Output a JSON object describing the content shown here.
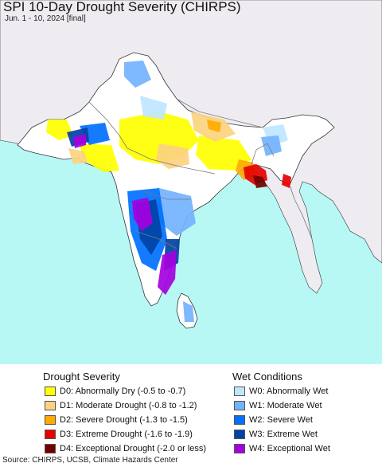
{
  "header": {
    "title": "SPI 10-Day Drought Severity (CHIRPS)",
    "subtitle": "Jun. 1 - 10, 2024 [final]"
  },
  "colors": {
    "sea": "#b7f8f5",
    "land_outside": "#eeecf1",
    "land_normal": "#ffffff",
    "border_line": "#7a7a7a",
    "coast_line": "#333333"
  },
  "legend": {
    "drought": {
      "heading": "Drought Severity",
      "items": [
        {
          "code": "D0",
          "label": "D0: Abnormally Dry (-0.5 to -0.7)",
          "color": "#ffff00"
        },
        {
          "code": "D1",
          "label": "D1: Moderate Drought (-0.8 to -1.2)",
          "color": "#fcd37f"
        },
        {
          "code": "D2",
          "label": "D2: Severe Drought (-1.3 to -1.5)",
          "color": "#ffaa00"
        },
        {
          "code": "D3",
          "label": "D3: Extreme Drought (-1.6 to -1.9)",
          "color": "#e60000"
        },
        {
          "code": "D4",
          "label": "D4: Exceptional Drought (-2.0 or less)",
          "color": "#730000"
        }
      ]
    },
    "wet": {
      "heading": "Wet Conditions",
      "items": [
        {
          "code": "W0",
          "label": "W0: Abnormally Wet",
          "color": "#bfe6ff"
        },
        {
          "code": "W1",
          "label": "W1: Moderate Wet",
          "color": "#73b2ff"
        },
        {
          "code": "W2",
          "label": "W2: Severe Wet",
          "color": "#0070ff"
        },
        {
          "code": "W3",
          "label": "W3: Extreme Wet",
          "color": "#0042a5"
        },
        {
          "code": "W4",
          "label": "W4: Exceptional Wet",
          "color": "#a400e0"
        }
      ]
    }
  },
  "footer": {
    "source": "Source: CHIRPS, UCSB, Climate Hazards Center"
  }
}
